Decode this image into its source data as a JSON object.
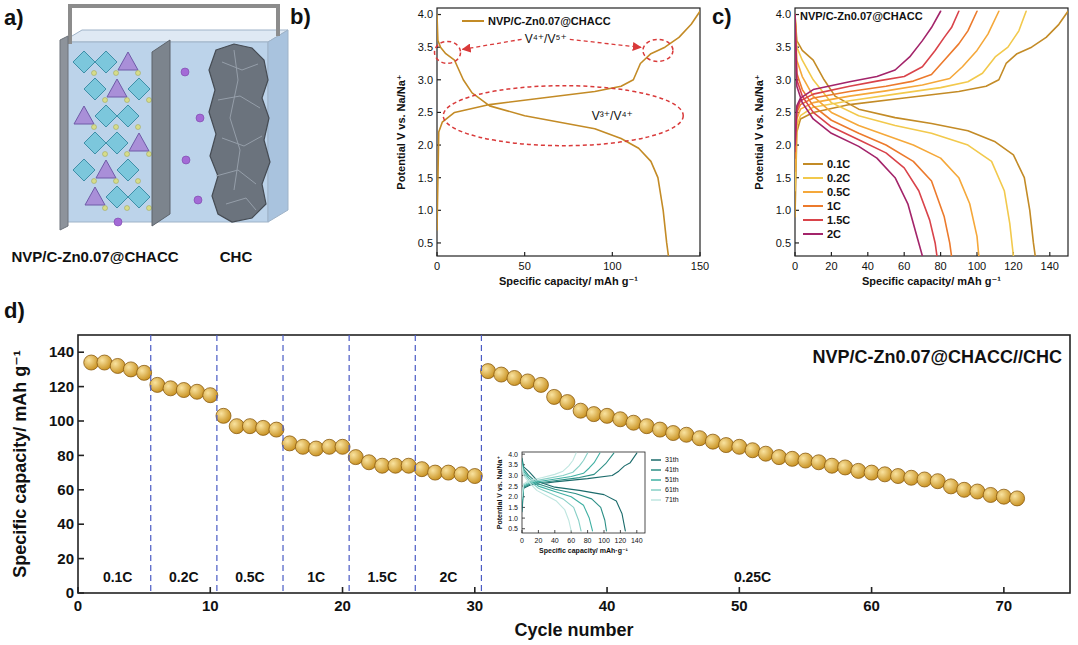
{
  "diagram": {
    "panel": "a)",
    "labels": [
      "NVP/C-Zn0.07@CHACC",
      "CHC"
    ]
  },
  "chart_data": [
    {
      "panel": "b)",
      "type": "line",
      "xlabel": "Specific capacity/ mAh g⁻¹",
      "ylabel": "Potential V vs. Na/Na⁺",
      "xlim": [
        0,
        150
      ],
      "ylim": [
        0.3,
        4.1
      ],
      "xticks": [
        0,
        50,
        100,
        150
      ],
      "yticks": [
        0.5,
        {
          "value": 1,
          "label": "1.0"
        },
        1.5,
        {
          "value": 2,
          "label": "2.0"
        },
        2.5,
        {
          "value": 3,
          "label": "3.0"
        },
        3.5,
        {
          "value": 4,
          "label": "4.0"
        }
      ],
      "legend": "upper left",
      "annotations": [
        "V⁴⁺/V⁵⁺",
        "V³⁺/V⁴⁺"
      ],
      "series": [
        {
          "name": "NVP/C-Zn0.07@CHACC",
          "color": "#c38b26",
          "x": [
            0,
            1,
            3,
            10,
            30,
            60,
            90,
            105,
            112,
            116,
            122,
            130,
            138,
            145,
            150,
            null,
            0,
            0.5,
            2,
            5,
            10,
            15,
            20,
            30,
            50,
            70,
            90,
            105,
            115,
            122,
            126,
            129,
            131,
            132
          ],
          "values": [
            0.7,
            2.2,
            2.35,
            2.5,
            2.62,
            2.72,
            2.82,
            2.9,
            3.0,
            3.25,
            3.4,
            3.5,
            3.65,
            3.85,
            4.05,
            null,
            4.0,
            3.6,
            3.5,
            3.4,
            3.3,
            3.0,
            2.8,
            2.6,
            2.45,
            2.35,
            2.25,
            2.1,
            1.95,
            1.75,
            1.5,
            1.0,
            0.5,
            0.3
          ]
        }
      ]
    },
    {
      "panel": "c)",
      "type": "line",
      "title": "NVP/C-Zn0.07@CHACC",
      "xlabel": "Specific capacity/ mAh g⁻¹",
      "ylabel": "Potential V vs. Na/Na⁺",
      "xlim": [
        0,
        150
      ],
      "ylim": [
        0.3,
        4.1
      ],
      "xticks": [
        0,
        20,
        40,
        60,
        80,
        100,
        120,
        140
      ],
      "yticks": [
        0.5,
        {
          "value": 1,
          "label": "1.0"
        },
        1.5,
        {
          "value": 2,
          "label": "2.0"
        },
        2.5,
        {
          "value": 3,
          "label": "3.0"
        },
        3.5,
        {
          "value": 4,
          "label": "4.0"
        }
      ],
      "legend": "lower left",
      "series": [
        {
          "name": "0.1C",
          "color": "#c38b26",
          "x": [
            0,
            1,
            3,
            10,
            30,
            60,
            90,
            105,
            112,
            116,
            122,
            130,
            138,
            145,
            150,
            null,
            0,
            1,
            4,
            10,
            16,
            22,
            35,
            55,
            75,
            95,
            110,
            120,
            126,
            129,
            131,
            132
          ],
          "values": [
            0.9,
            2.2,
            2.4,
            2.5,
            2.62,
            2.72,
            2.82,
            2.9,
            3.0,
            3.25,
            3.4,
            3.5,
            3.65,
            3.85,
            4.05,
            null,
            4.0,
            3.6,
            3.45,
            3.3,
            3.0,
            2.75,
            2.55,
            2.42,
            2.33,
            2.22,
            2.05,
            1.85,
            1.5,
            1.0,
            0.5,
            0.3
          ]
        },
        {
          "name": "0.2C",
          "color": "#f2c94c",
          "x": [
            0,
            1,
            3,
            10,
            30,
            55,
            80,
            95,
            103,
            110,
            117,
            123,
            127,
            null,
            0,
            1,
            4,
            10,
            20,
            35,
            55,
            75,
            95,
            108,
            115,
            118,
            120
          ],
          "values": [
            1.3,
            2.3,
            2.45,
            2.58,
            2.68,
            2.78,
            2.88,
            2.97,
            3.1,
            3.35,
            3.5,
            3.75,
            4.05,
            null,
            4.0,
            3.5,
            3.3,
            3.0,
            2.65,
            2.45,
            2.3,
            2.18,
            2.0,
            1.75,
            1.3,
            0.8,
            0.3
          ]
        },
        {
          "name": "0.5C",
          "color": "#f5a83a",
          "x": [
            0,
            1,
            3,
            10,
            30,
            50,
            70,
            85,
            92,
            100,
            106,
            112,
            null,
            0,
            1,
            4,
            10,
            20,
            35,
            50,
            65,
            80,
            90,
            96,
            100,
            101
          ],
          "values": [
            1.6,
            2.4,
            2.55,
            2.65,
            2.75,
            2.83,
            2.92,
            3.02,
            3.2,
            3.45,
            3.7,
            4.05,
            null,
            4.0,
            3.3,
            3.05,
            2.75,
            2.5,
            2.3,
            2.15,
            2.0,
            1.8,
            1.5,
            1.1,
            0.6,
            0.3
          ]
        },
        {
          "name": "1C",
          "color": "#ec7a2c",
          "x": [
            0,
            1,
            3,
            10,
            30,
            50,
            65,
            75,
            82,
            90,
            95,
            100,
            null,
            0,
            1,
            4,
            10,
            20,
            35,
            50,
            65,
            75,
            82,
            85,
            86
          ],
          "values": [
            1.8,
            2.5,
            2.62,
            2.72,
            2.82,
            2.9,
            2.98,
            3.08,
            3.3,
            3.55,
            3.75,
            4.05,
            null,
            4.0,
            3.1,
            2.85,
            2.6,
            2.38,
            2.18,
            2.0,
            1.75,
            1.45,
            0.9,
            0.5,
            0.3
          ]
        },
        {
          "name": "1.5C",
          "color": "#d9434a",
          "x": [
            0,
            1,
            3,
            10,
            30,
            45,
            60,
            70,
            77,
            82,
            86,
            90,
            null,
            0,
            1,
            4,
            10,
            20,
            35,
            50,
            60,
            68,
            74,
            77,
            78
          ],
          "values": [
            1.9,
            2.55,
            2.68,
            2.78,
            2.9,
            2.98,
            3.05,
            3.2,
            3.45,
            3.65,
            3.8,
            4.05,
            null,
            4.0,
            3.0,
            2.75,
            2.5,
            2.28,
            2.08,
            1.88,
            1.65,
            1.3,
            0.85,
            0.5,
            0.3
          ]
        },
        {
          "name": "2C",
          "color": "#a3246a",
          "x": [
            0,
            1,
            3,
            10,
            30,
            45,
            55,
            63,
            70,
            75,
            80,
            null,
            0,
            1,
            4,
            10,
            20,
            35,
            45,
            55,
            62,
            67,
            70
          ],
          "values": [
            2.0,
            2.6,
            2.72,
            2.85,
            2.97,
            3.05,
            3.15,
            3.35,
            3.6,
            3.8,
            4.05,
            null,
            4.0,
            2.9,
            2.65,
            2.4,
            2.18,
            1.98,
            1.8,
            1.5,
            1.1,
            0.6,
            0.3
          ]
        }
      ]
    },
    {
      "panel": "d)",
      "type": "scatter",
      "title": "NVP/C-Zn0.07@CHACC//CHC",
      "xlabel": "Cycle number",
      "ylabel": "Specific capacity/ mAh g⁻¹",
      "xlim": [
        0,
        75
      ],
      "ylim": [
        0,
        150
      ],
      "xticks": [
        0,
        10,
        20,
        30,
        40,
        50,
        60,
        70
      ],
      "yticks": [
        0,
        20,
        40,
        60,
        80,
        100,
        120,
        140
      ],
      "marker": "circle",
      "color": "#c8901e",
      "x": [
        1,
        2,
        3,
        4,
        5,
        6,
        7,
        8,
        9,
        10,
        11,
        12,
        13,
        14,
        15,
        16,
        17,
        18,
        19,
        20,
        21,
        22,
        23,
        24,
        25,
        26,
        27,
        28,
        29,
        30,
        31,
        32,
        33,
        34,
        35,
        36,
        37,
        38,
        39,
        40,
        41,
        42,
        43,
        44,
        45,
        46,
        47,
        48,
        49,
        50,
        51,
        52,
        53,
        54,
        55,
        56,
        57,
        58,
        59,
        60,
        61,
        62,
        63,
        64,
        65,
        66,
        67,
        68,
        69,
        70,
        71
      ],
      "values": [
        134,
        134,
        132,
        130,
        128,
        121,
        119,
        118,
        117,
        115,
        103,
        97,
        97,
        96,
        95,
        87,
        85,
        84,
        85,
        85,
        79,
        76,
        74,
        74,
        74,
        72,
        70,
        70,
        69,
        68,
        129,
        127,
        125,
        123,
        121,
        114,
        111,
        106,
        104,
        103,
        101,
        99,
        97,
        95,
        93,
        92,
        90,
        88,
        86,
        85,
        83,
        81,
        79,
        78,
        77,
        76,
        74,
        73,
        71,
        70,
        69,
        68,
        67,
        66,
        65,
        62,
        60,
        59,
        57,
        56,
        55
      ],
      "segments": [
        {
          "label": "0.1C",
          "start": 1,
          "end": 5
        },
        {
          "label": "0.2C",
          "start": 6,
          "end": 10
        },
        {
          "label": "0.5C",
          "start": 11,
          "end": 15
        },
        {
          "label": "1C",
          "start": 16,
          "end": 20
        },
        {
          "label": "1.5C",
          "start": 21,
          "end": 25
        },
        {
          "label": "2C",
          "start": 26,
          "end": 30
        },
        {
          "label": "0.25C",
          "start": 31,
          "end": 71
        }
      ]
    },
    {
      "type": "line",
      "xlabel": "Specific capacity/ mAh·g⁻¹",
      "ylabel": "Potential V vs. Na/Na⁺",
      "xlim": [
        0,
        150
      ],
      "ylim": [
        0.3,
        4.1
      ],
      "xticks": [
        0,
        20,
        40,
        60,
        80,
        100,
        120,
        140
      ],
      "yticks": [
        0.5,
        {
          "value": 1,
          "label": "1.0"
        },
        1.5,
        {
          "value": 2,
          "label": "2.0"
        },
        2.5,
        {
          "value": 3,
          "label": "3.0"
        },
        3.5,
        {
          "value": 4,
          "label": "4.0"
        }
      ],
      "legend": "right",
      "series": [
        {
          "name": "31th",
          "color": "#1b6b6b",
          "x": [
            0,
            2,
            10,
            40,
            80,
            110,
            118,
            125,
            132,
            140,
            null,
            0,
            2,
            8,
            20,
            40,
            70,
            100,
            115,
            122,
            126
          ],
          "values": [
            1.3,
            2.4,
            2.55,
            2.7,
            2.85,
            3.0,
            3.2,
            3.45,
            3.6,
            4.05,
            null,
            3.8,
            3.4,
            3.2,
            2.7,
            2.45,
            2.3,
            2.1,
            1.8,
            1.2,
            0.4
          ]
        },
        {
          "name": "41th",
          "color": "#2c8f86",
          "x": [
            0,
            2,
            10,
            40,
            70,
            88,
            95,
            102,
            112,
            null,
            0,
            2,
            8,
            20,
            40,
            65,
            85,
            96,
            101,
            103
          ],
          "values": [
            1.6,
            2.45,
            2.6,
            2.75,
            2.9,
            3.05,
            3.3,
            3.55,
            4.05,
            null,
            3.7,
            3.3,
            3.0,
            2.6,
            2.35,
            2.15,
            1.9,
            1.5,
            0.9,
            0.4
          ]
        },
        {
          "name": "51th",
          "color": "#3fb0a3",
          "x": [
            0,
            2,
            10,
            35,
            60,
            75,
            82,
            88,
            95,
            null,
            0,
            2,
            8,
            20,
            40,
            60,
            75,
            82,
            86
          ],
          "values": [
            1.8,
            2.5,
            2.65,
            2.8,
            2.95,
            3.1,
            3.35,
            3.6,
            4.05,
            null,
            3.6,
            3.2,
            2.9,
            2.5,
            2.25,
            2.0,
            1.6,
            1.0,
            0.4
          ]
        },
        {
          "name": "61th",
          "color": "#86cfc6",
          "x": [
            0,
            2,
            10,
            30,
            50,
            62,
            70,
            75,
            80,
            null,
            0,
            2,
            8,
            20,
            35,
            50,
            63,
            69,
            72
          ],
          "values": [
            1.9,
            2.55,
            2.7,
            2.85,
            3.0,
            3.15,
            3.45,
            3.7,
            4.05,
            null,
            3.5,
            3.1,
            2.8,
            2.4,
            2.15,
            1.9,
            1.5,
            0.9,
            0.4
          ]
        },
        {
          "name": "71th",
          "color": "#bfe6e0",
          "x": [
            0,
            2,
            8,
            25,
            40,
            50,
            57,
            62,
            66,
            null,
            0,
            2,
            8,
            18,
            30,
            42,
            52,
            57,
            60
          ],
          "values": [
            2.0,
            2.6,
            2.75,
            2.9,
            3.05,
            3.2,
            3.45,
            3.7,
            4.05,
            null,
            3.4,
            3.0,
            2.7,
            2.3,
            2.05,
            1.8,
            1.4,
            0.9,
            0.4
          ]
        }
      ]
    }
  ]
}
